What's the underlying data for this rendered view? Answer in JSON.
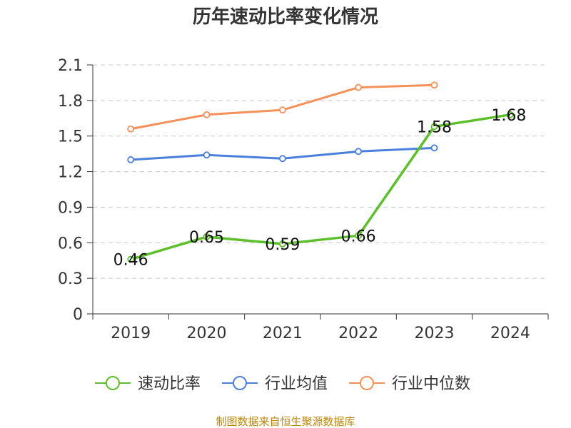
{
  "chart_data": {
    "type": "line",
    "title": "历年速动比率变化情况",
    "xlabel": "",
    "ylabel": "",
    "categories": [
      "2019",
      "2020",
      "2021",
      "2022",
      "2023",
      "2024"
    ],
    "ylim": [
      0,
      2.1
    ],
    "yticks": [
      "0",
      "0.3",
      "0.6",
      "0.9",
      "1.2",
      "1.5",
      "1.8",
      "2.1"
    ],
    "grid": true,
    "legend_position": "bottom",
    "series": [
      {
        "name": "速动比率",
        "color": "#5dbf2b",
        "values": [
          0.46,
          0.65,
          0.59,
          0.66,
          1.58,
          1.68
        ],
        "labels": [
          "0.46",
          "0.65",
          "0.59",
          "0.66",
          "1.58",
          "1.68"
        ]
      },
      {
        "name": "行业均值",
        "color": "#4a7fdc",
        "values": [
          1.3,
          1.34,
          1.31,
          1.37,
          1.4,
          null
        ]
      },
      {
        "name": "行业中位数",
        "color": "#f5905a",
        "values": [
          1.56,
          1.68,
          1.72,
          1.91,
          1.93,
          null
        ]
      }
    ],
    "source": "制图数据来自恒生聚源数据库"
  }
}
